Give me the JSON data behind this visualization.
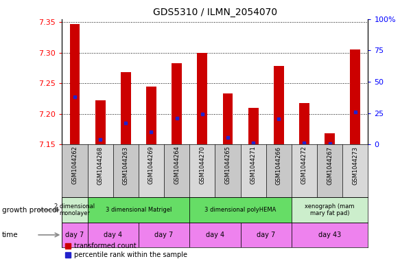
{
  "title": "GDS5310 / ILMN_2054070",
  "samples": [
    "GSM1044262",
    "GSM1044268",
    "GSM1044263",
    "GSM1044269",
    "GSM1044264",
    "GSM1044270",
    "GSM1044265",
    "GSM1044271",
    "GSM1044266",
    "GSM1044272",
    "GSM1044267",
    "GSM1044273"
  ],
  "red_values": [
    7.347,
    7.222,
    7.268,
    7.245,
    7.283,
    7.3,
    7.233,
    7.21,
    7.278,
    7.218,
    7.168,
    7.305
  ],
  "blue_values": [
    7.228,
    7.158,
    7.185,
    7.17,
    7.193,
    7.2,
    7.162,
    7.153,
    7.192,
    7.152,
    7.151,
    7.203
  ],
  "ylim_left": [
    7.15,
    7.355
  ],
  "ylim_right": [
    0,
    100
  ],
  "yticks_left": [
    7.15,
    7.2,
    7.25,
    7.3,
    7.35
  ],
  "yticks_right": [
    0,
    25,
    50,
    75,
    100
  ],
  "ytick_labels_right": [
    "0",
    "25",
    "50",
    "75",
    "100%"
  ],
  "bar_color": "#CC0000",
  "blue_color": "#2222CC",
  "baseline": 7.15,
  "growth_protocol_groups": [
    {
      "label": "2 dimensional\nmonolayer",
      "start": 0,
      "end": 1,
      "color": "#cceecc"
    },
    {
      "label": "3 dimensional Matrigel",
      "start": 1,
      "end": 5,
      "color": "#66dd66"
    },
    {
      "label": "3 dimensional polyHEMA",
      "start": 5,
      "end": 9,
      "color": "#66dd66"
    },
    {
      "label": "xenograph (mam\nmary fat pad)",
      "start": 9,
      "end": 12,
      "color": "#cceecc"
    }
  ],
  "time_groups": [
    {
      "label": "day 7",
      "start": 0,
      "end": 1
    },
    {
      "label": "day 4",
      "start": 1,
      "end": 3
    },
    {
      "label": "day 7",
      "start": 3,
      "end": 5
    },
    {
      "label": "day 4",
      "start": 5,
      "end": 7
    },
    {
      "label": "day 7",
      "start": 7,
      "end": 9
    },
    {
      "label": "day 43",
      "start": 9,
      "end": 12
    }
  ],
  "time_color": "#ee82ee",
  "gsm_colors": [
    "#c8c8c8",
    "#d8d8d8"
  ],
  "legend_items": [
    {
      "label": "transformed count",
      "color": "#CC0000"
    },
    {
      "label": "percentile rank within the sample",
      "color": "#2222CC"
    }
  ],
  "bar_width": 0.4
}
